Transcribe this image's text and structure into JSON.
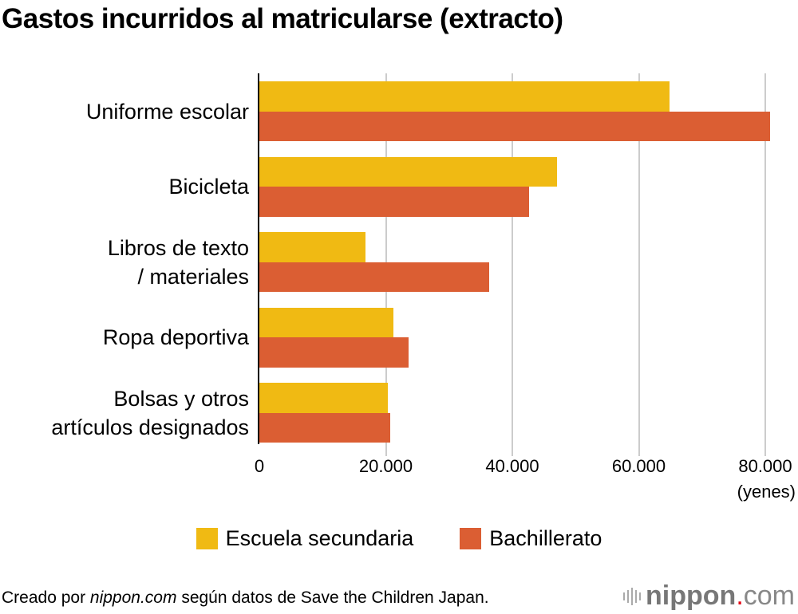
{
  "title": "Gastos incurridos al matricularse (extracto)",
  "chart_data": {
    "type": "bar",
    "orientation": "horizontal",
    "title": "Gastos incurridos al matricularse (extracto)",
    "xlabel": "(yenes)",
    "ylabel": "",
    "xlim": [
      0,
      80000
    ],
    "xticks": [
      "0",
      "20.000",
      "40.000",
      "60.000",
      "80.000"
    ],
    "grid": true,
    "legend_position": "bottom",
    "categories": [
      "Uniforme escolar",
      "Bicicleta",
      "Libros de texto / materiales",
      "Ropa deportiva",
      "Bolsas y otros artículos designados"
    ],
    "series": [
      {
        "name": "Escuela secundaria",
        "color": "#f0ba13",
        "values": [
          64900,
          47100,
          16800,
          21200,
          20300
        ]
      },
      {
        "name": "Bachillerato",
        "color": "#db5e33",
        "values": [
          80800,
          42600,
          36400,
          23600,
          20700
        ]
      }
    ]
  },
  "categories_display": [
    [
      "Uniforme escolar"
    ],
    [
      "Bicicleta"
    ],
    [
      "Libros de texto",
      "/ materiales"
    ],
    [
      "Ropa deportiva"
    ],
    [
      "Bolsas y otros",
      "artículos designados"
    ]
  ],
  "legend": {
    "items": [
      {
        "label": "Escuela secundaria",
        "color": "#f0ba13"
      },
      {
        "label": "Bachillerato",
        "color": "#db5e33"
      }
    ]
  },
  "footer": {
    "source_prefix": "Creado por ",
    "source_site": "nippon.com",
    "source_suffix": " según datos de Save the Children Japan.",
    "logo_brand": "nippon",
    "logo_dot": ".",
    "logo_tld": "com"
  }
}
